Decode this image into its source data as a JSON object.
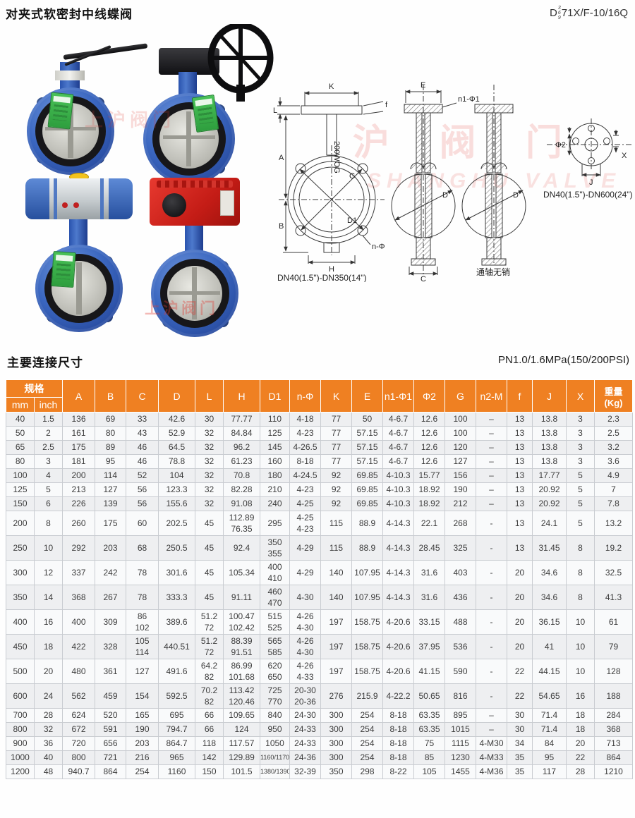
{
  "page": {
    "title": "对夹式软密封中线蝶阀",
    "model_prefix": "D",
    "model_stack": [
      "3",
      "6",
      "9"
    ],
    "model_suffix": "71X/F-10/16Q",
    "section_title": "主要连接尺寸",
    "pressure_note": "PN1.0/1.6MPa(150/200PSI)"
  },
  "watermark": {
    "cn1": "上沪阀门",
    "cn2": "沪  阀  门",
    "en": "SHANGHU VALVE"
  },
  "drawings": {
    "fig1": {
      "labels": {
        "K": "K",
        "L": "L",
        "f": "f",
        "A": "A",
        "B": "B",
        "G": "G",
        "D1": "D1",
        "nphi": "n-Φ",
        "H": "H"
      },
      "stem_text": "200WOG",
      "caption": "DN40(1.5\")-DN350(14\")"
    },
    "fig2": {
      "labels": {
        "E": "E",
        "n1phi1": "n1-Φ1",
        "D": "D",
        "C": "C"
      }
    },
    "fig3": {
      "labels": {
        "D": "D"
      },
      "caption": "通轴无销"
    },
    "fig4": {
      "labels": {
        "phi2": "Φ2",
        "X": "X",
        "J": "J"
      },
      "caption": "DN40(1.5\")-DN600(24\")"
    }
  },
  "table": {
    "header": {
      "spec": "规格",
      "mm": "mm",
      "inch": "inch",
      "cols": [
        "A",
        "B",
        "C",
        "D",
        "L",
        "H",
        "D1",
        "n-Φ",
        "K",
        "E",
        "n1-Φ1",
        "Φ2",
        "G",
        "n2-M",
        "f",
        "J",
        "X"
      ],
      "weight": "重量\n(Kg)"
    },
    "rows": [
      [
        "40",
        "1.5",
        "136",
        "69",
        "33",
        "42.6",
        "30",
        "77.77",
        "110",
        "4-18",
        "77",
        "50",
        "4-6.7",
        "12.6",
        "100",
        "–",
        "13",
        "13.8",
        "3",
        "2.3"
      ],
      [
        "50",
        "2",
        "161",
        "80",
        "43",
        "52.9",
        "32",
        "84.84",
        "125",
        "4-23",
        "77",
        "57.15",
        "4-6.7",
        "12.6",
        "100",
        "–",
        "13",
        "13.8",
        "3",
        "2.5"
      ],
      [
        "65",
        "2.5",
        "175",
        "89",
        "46",
        "64.5",
        "32",
        "96.2",
        "145",
        "4-26.5",
        "77",
        "57.15",
        "4-6.7",
        "12.6",
        "120",
        "–",
        "13",
        "13.8",
        "3",
        "3.2"
      ],
      [
        "80",
        "3",
        "181",
        "95",
        "46",
        "78.8",
        "32",
        "61.23",
        "160",
        "8-18",
        "77",
        "57.15",
        "4-6.7",
        "12.6",
        "127",
        "–",
        "13",
        "13.8",
        "3",
        "3.6"
      ],
      [
        "100",
        "4",
        "200",
        "114",
        "52",
        "104",
        "32",
        "70.8",
        "180",
        "4-24.5",
        "92",
        "69.85",
        "4-10.3",
        "15.77",
        "156",
        "–",
        "13",
        "17.77",
        "5",
        "4.9"
      ],
      [
        "125",
        "5",
        "213",
        "127",
        "56",
        "123.3",
        "32",
        "82.28",
        "210",
        "4-23",
        "92",
        "69.85",
        "4-10.3",
        "18.92",
        "190",
        "–",
        "13",
        "20.92",
        "5",
        "7"
      ],
      [
        "150",
        "6",
        "226",
        "139",
        "56",
        "155.6",
        "32",
        "91.08",
        "240",
        "4-25",
        "92",
        "69.85",
        "4-10.3",
        "18.92",
        "212",
        "–",
        "13",
        "20.92",
        "5",
        "7.8"
      ],
      [
        "200",
        "8",
        "260",
        "175",
        "60",
        "202.5",
        "45",
        "112.89\n76.35",
        "295",
        "4-25\n4-23",
        "115",
        "88.9",
        "4-14.3",
        "22.1",
        "268",
        "-",
        "13",
        "24.1",
        "5",
        "13.2"
      ],
      [
        "250",
        "10",
        "292",
        "203",
        "68",
        "250.5",
        "45",
        "92.4",
        "350\n355",
        "4-29",
        "115",
        "88.9",
        "4-14.3",
        "28.45",
        "325",
        "-",
        "13",
        "31.45",
        "8",
        "19.2"
      ],
      [
        "300",
        "12",
        "337",
        "242",
        "78",
        "301.6",
        "45",
        "105.34",
        "400\n410",
        "4-29",
        "140",
        "107.95",
        "4-14.3",
        "31.6",
        "403",
        "-",
        "20",
        "34.6",
        "8",
        "32.5"
      ],
      [
        "350",
        "14",
        "368",
        "267",
        "78",
        "333.3",
        "45",
        "91.11",
        "460\n470",
        "4-30",
        "140",
        "107.95",
        "4-14.3",
        "31.6",
        "436",
        "-",
        "20",
        "34.6",
        "8",
        "41.3"
      ],
      [
        "400",
        "16",
        "400",
        "309",
        "86\n102",
        "389.6",
        "51.2\n72",
        "100.47\n102.42",
        "515\n525",
        "4-26\n4-30",
        "197",
        "158.75",
        "4-20.6",
        "33.15",
        "488",
        "-",
        "20",
        "36.15",
        "10",
        "61"
      ],
      [
        "450",
        "18",
        "422",
        "328",
        "105\n114",
        "440.51",
        "51.2\n72",
        "88.39\n91.51",
        "565\n585",
        "4-26\n4-30",
        "197",
        "158.75",
        "4-20.6",
        "37.95",
        "536",
        "-",
        "20",
        "41",
        "10",
        "79"
      ],
      [
        "500",
        "20",
        "480",
        "361",
        "127",
        "491.6",
        "64.2\n82",
        "86.99\n101.68",
        "620\n650",
        "4-26\n4-33",
        "197",
        "158.75",
        "4-20.6",
        "41.15",
        "590",
        "-",
        "22",
        "44.15",
        "10",
        "128"
      ],
      [
        "600",
        "24",
        "562",
        "459",
        "154",
        "592.5",
        "70.2\n82",
        "113.42\n120.46",
        "725\n770",
        "20-30\n20-36",
        "276",
        "215.9",
        "4-22.2",
        "50.65",
        "816",
        "-",
        "22",
        "54.65",
        "16",
        "188"
      ],
      [
        "700",
        "28",
        "624",
        "520",
        "165",
        "695",
        "66",
        "109.65",
        "840",
        "24-30",
        "300",
        "254",
        "8-18",
        "63.35",
        "895",
        "–",
        "30",
        "71.4",
        "18",
        "284"
      ],
      [
        "800",
        "32",
        "672",
        "591",
        "190",
        "794.7",
        "66",
        "124",
        "950",
        "24-33",
        "300",
        "254",
        "8-18",
        "63.35",
        "1015",
        "–",
        "30",
        "71.4",
        "18",
        "368"
      ],
      [
        "900",
        "36",
        "720",
        "656",
        "203",
        "864.7",
        "118",
        "117.57",
        "1050",
        "24-33",
        "300",
        "254",
        "8-18",
        "75",
        "1115",
        "4-M30",
        "34",
        "84",
        "20",
        "713"
      ],
      [
        "1000",
        "40",
        "800",
        "721",
        "216",
        "965",
        "142",
        "129.89",
        "1160/1170",
        "24-36",
        "300",
        "254",
        "8-18",
        "85",
        "1230",
        "4-M33",
        "35",
        "95",
        "22",
        "864"
      ],
      [
        "1200",
        "48",
        "940.7",
        "864",
        "254",
        "1160",
        "150",
        "101.5",
        "1380/1390",
        "32-39",
        "350",
        "298",
        "8-22",
        "105",
        "1455",
        "4-M36",
        "35",
        "117",
        "28",
        "1210"
      ]
    ]
  }
}
